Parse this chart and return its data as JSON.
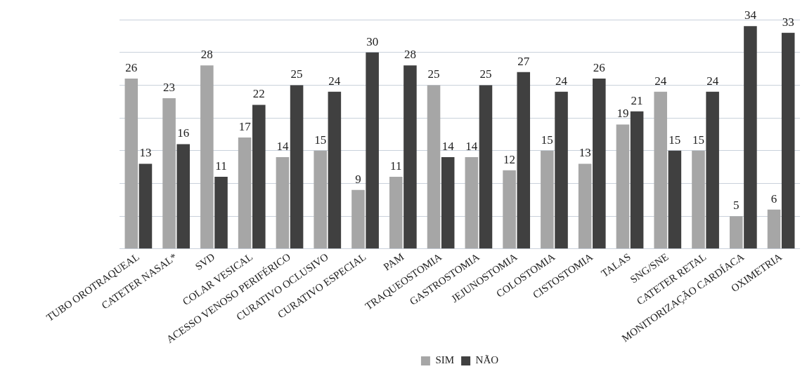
{
  "chart_data": {
    "type": "bar",
    "categories": [
      "TUBO OROTRAQUEAL",
      "CATETER NASAL*",
      "SVD",
      "COLAR VESICAL",
      "ACESSO VENOSO PERIFÉRICO",
      "CURATIVO OCLUSIVO",
      "CURATIVO ESPECIAL",
      "PAM",
      "TRAQUEOSTOMIA",
      "GASTROSTOMIA",
      "JEJUNOSTOMIA",
      "COLOSTOMIA",
      "CISTOSTOMIA",
      "TALAS",
      "SNG/SNE",
      "CATETER RETAL",
      "MONITORIZAÇÃO CARDÍACA",
      "OXIMETRIA"
    ],
    "series": [
      {
        "name": "SIM",
        "color": "#a6a6a6",
        "values": [
          26,
          23,
          28,
          17,
          14,
          15,
          9,
          11,
          25,
          14,
          12,
          15,
          13,
          19,
          24,
          15,
          5,
          6
        ]
      },
      {
        "name": "NÃO",
        "color": "#404040",
        "values": [
          13,
          16,
          11,
          22,
          25,
          24,
          30,
          28,
          14,
          25,
          27,
          24,
          26,
          21,
          15,
          24,
          34,
          33
        ]
      }
    ],
    "tick_labels": "x",
    "grid": "y",
    "legend": "bottom",
    "data_labels": true
  }
}
